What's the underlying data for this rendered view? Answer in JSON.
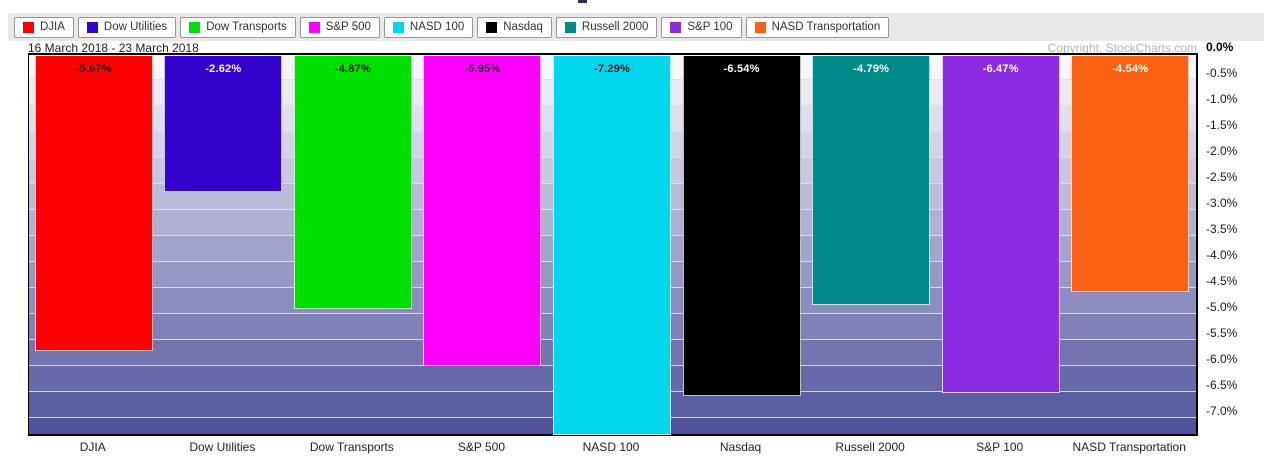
{
  "header": {
    "date_range": "16 March 2018 - 23 March 2018",
    "copyright": "Copyright, StockCharts.com"
  },
  "legend": {
    "items": [
      {
        "label": "DJIA",
        "color": "#ff0000"
      },
      {
        "label": "Dow Utilities",
        "color": "#3302cd"
      },
      {
        "label": "Dow Transports",
        "color": "#00e000"
      },
      {
        "label": "S&P 500",
        "color": "#ff00ff"
      },
      {
        "label": "NASD 100",
        "color": "#00d7ef"
      },
      {
        "label": "Nasdaq",
        "color": "#000000"
      },
      {
        "label": "Russell 2000",
        "color": "#008b8b"
      },
      {
        "label": "S&P 100",
        "color": "#8b2be2"
      },
      {
        "label": "NASD Transportation",
        "color": "#fa6112"
      }
    ]
  },
  "chart_data": {
    "type": "bar",
    "title": "",
    "xlabel": "",
    "ylabel": "",
    "categories": [
      "DJIA",
      "Dow Utilities",
      "Dow Transports",
      "S&P 500",
      "NASD 100",
      "Nasdaq",
      "Russell 2000",
      "S&P 100",
      "NASD Transportation"
    ],
    "values": [
      -5.67,
      -2.62,
      -4.87,
      -5.95,
      -7.29,
      -6.54,
      -4.79,
      -6.47,
      -4.54
    ],
    "data_labels": [
      "-5.67%",
      "-2.62%",
      "-4.87%",
      "-5.95%",
      "-7.29%",
      "-6.54%",
      "-4.79%",
      "-6.47%",
      "-4.54%"
    ],
    "bar_colors": [
      "#ff0000",
      "#3302cd",
      "#00e000",
      "#ff00ff",
      "#00d7ef",
      "#000000",
      "#008b8b",
      "#8b2be2",
      "#fa6112"
    ],
    "label_colors": [
      "#1a1a1a",
      "#ffffff",
      "#1a1a1a",
      "#1a1a1a",
      "#1a1a1a",
      "#ffffff",
      "#ffffff",
      "#ffffff",
      "#ffffff"
    ],
    "y_ticks": [
      "0.0%",
      "-0.5%",
      "-1.0%",
      "-1.5%",
      "-2.0%",
      "-2.5%",
      "-3.0%",
      "-3.5%",
      "-4.0%",
      "-4.5%",
      "-5.0%",
      "-5.5%",
      "-6.0%",
      "-6.5%",
      "-7.0%"
    ],
    "ylim": [
      0,
      -7.3
    ],
    "grid": true,
    "legend_position": "top"
  }
}
